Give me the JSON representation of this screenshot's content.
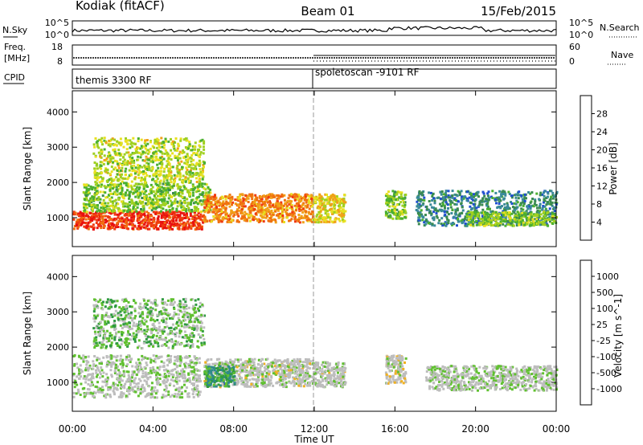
{
  "header": {
    "station": "Kodiak (fitACF)",
    "beam": "Beam 01",
    "date": "15/Feb/2015"
  },
  "noise_panel": {
    "left_label": "N.Sky",
    "right_label": "N.Search",
    "left_ticks": [
      "10^5",
      "10^0"
    ],
    "right_ticks": [
      "10^5",
      "10^0"
    ]
  },
  "freq_panel": {
    "left_label_1": "Freq.",
    "left_label_2": "[MHz]",
    "right_label": "Nave",
    "left_ticks": [
      "18",
      "8"
    ],
    "right_ticks": [
      "60",
      "0"
    ]
  },
  "cpid_panel": {
    "label": "CPID",
    "program_1": "themis 3300 RF",
    "program_2": "spoletoscan -9101 RF",
    "switch_time_h": 11.9
  },
  "power_panel": {
    "ylabel": "Slant Range [km]",
    "colorbar_label": "Power [dB]",
    "colorbar_ticks": [
      "28",
      "24",
      "20",
      "16",
      "12",
      "8",
      "4"
    ],
    "colors": [
      "#0000ff",
      "#1f4fd0",
      "#3a8a9a",
      "#3a8a50",
      "#4ab030",
      "#a0d020",
      "#e8e020",
      "#f0a018",
      "#f07010",
      "#f03a10",
      "#e81010"
    ]
  },
  "velocity_panel": {
    "ylabel": "Slant Range [km]",
    "colorbar_label": "Velocity [m s^-1]",
    "colorbar_ticks": [
      "1000",
      "500",
      "100",
      "25",
      "-25",
      "-100",
      "-500",
      "-1000"
    ],
    "colors": [
      "#2040c0",
      "#2f5fb0",
      "#2f8a8a",
      "#2f9a40",
      "#60c030",
      "#bdbdbd",
      "#bdbdbd",
      "#f0b020",
      "#f08020",
      "#f04010",
      "#e81010"
    ]
  },
  "x_axis": {
    "label": "Time UT",
    "ticks": [
      "00:00",
      "04:00",
      "08:00",
      "12:00",
      "16:00",
      "20:00",
      "00:00"
    ]
  },
  "chart_data": {
    "type": "heatmap",
    "title": "Kodiak (fitACF)   Beam 01   15/Feb/2015",
    "xlabel": "Time UT",
    "ylabel": "Slant Range [km]",
    "xlim_hours": [
      0,
      24
    ],
    "ylim_km": [
      180,
      4600
    ],
    "y_ticks": [
      1000,
      2000,
      3000,
      4000
    ],
    "grid": false,
    "panels": [
      {
        "name": "Power",
        "units": "dB",
        "color_range": [
          0,
          30
        ],
        "scatter_regions": [
          {
            "t_start": 0.0,
            "t_end": 6.5,
            "range_lo": 700,
            "range_hi": 1200,
            "value": 26
          },
          {
            "t_start": 0.5,
            "t_end": 6.8,
            "range_lo": 1200,
            "range_hi": 2000,
            "value": 14
          },
          {
            "t_start": 1.0,
            "t_end": 6.5,
            "range_lo": 2000,
            "range_hi": 3300,
            "value": 16
          },
          {
            "t_start": 6.5,
            "t_end": 11.9,
            "range_lo": 900,
            "range_hi": 1700,
            "value": 22
          },
          {
            "t_start": 11.9,
            "t_end": 13.5,
            "range_lo": 900,
            "range_hi": 1700,
            "value": 18
          },
          {
            "t_start": 15.5,
            "t_end": 16.5,
            "range_lo": 1000,
            "range_hi": 1800,
            "value": 14
          },
          {
            "t_start": 17.0,
            "t_end": 24.0,
            "range_lo": 800,
            "range_hi": 1800,
            "value": 8
          },
          {
            "t_start": 19.5,
            "t_end": 24.0,
            "range_lo": 800,
            "range_hi": 1200,
            "value": 14
          }
        ]
      },
      {
        "name": "Velocity",
        "units": "m s^-1",
        "color_range": [
          -1000,
          1000
        ],
        "scatter_regions": [
          {
            "t_start": 0.0,
            "t_end": 6.3,
            "range_lo": 600,
            "range_hi": 1800,
            "value": 0
          },
          {
            "t_start": 1.0,
            "t_end": 6.5,
            "range_lo": 2000,
            "range_hi": 3400,
            "value": -150
          },
          {
            "t_start": 6.5,
            "t_end": 11.9,
            "range_lo": 900,
            "range_hi": 1700,
            "value": 60
          },
          {
            "t_start": 6.5,
            "t_end": 8.0,
            "range_lo": 900,
            "range_hi": 1500,
            "value": -400
          },
          {
            "t_start": 11.9,
            "t_end": 13.5,
            "range_lo": 900,
            "range_hi": 1600,
            "value": 50
          },
          {
            "t_start": 15.5,
            "t_end": 16.5,
            "range_lo": 1000,
            "range_hi": 1800,
            "value": 100
          },
          {
            "t_start": 17.5,
            "t_end": 24.0,
            "range_lo": 800,
            "range_hi": 1500,
            "value": 0
          }
        ]
      }
    ]
  }
}
